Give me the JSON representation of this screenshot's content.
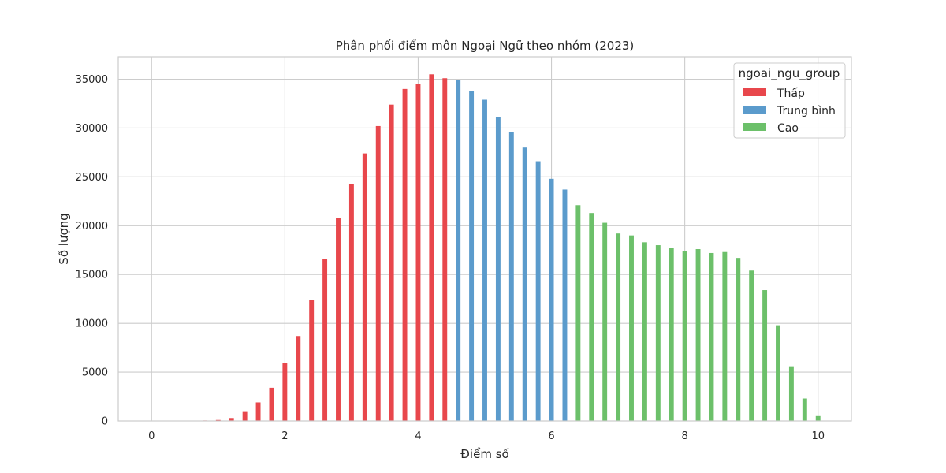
{
  "chart_data": {
    "type": "bar",
    "title": "Phân phối điểm môn Ngoại Ngữ theo nhóm (2023)",
    "xlabel": "Điểm số",
    "ylabel": "Số lượng",
    "xlim": [
      -0.5,
      10.5
    ],
    "ylim": [
      0,
      37300
    ],
    "xticks": [
      0,
      2,
      4,
      6,
      8,
      10
    ],
    "yticks": [
      0,
      5000,
      10000,
      15000,
      20000,
      25000,
      30000,
      35000
    ],
    "grid": true,
    "bar_width": 0.07,
    "legend": {
      "title": "ngoai_ngu_group",
      "placement": "top-right",
      "entries": [
        "Thấp",
        "Trung bình",
        "Cao"
      ]
    },
    "series": [
      {
        "name": "Thấp",
        "color": "#e8474c",
        "x": [
          0.0,
          0.2,
          0.4,
          0.6,
          0.8,
          1.0,
          1.2,
          1.4,
          1.6,
          1.8,
          2.0,
          2.2,
          2.4,
          2.6,
          2.8,
          3.0,
          3.2,
          3.4,
          3.6,
          3.8,
          4.0,
          4.2,
          4.4
        ],
        "values": [
          0,
          5,
          10,
          20,
          50,
          100,
          300,
          1000,
          1900,
          3400,
          5900,
          8700,
          12400,
          16600,
          20800,
          24300,
          27400,
          30200,
          32400,
          34000,
          34500,
          35500,
          35100
        ]
      },
      {
        "name": "Trung bình",
        "color": "#5b9bcc",
        "x": [
          4.6,
          4.8,
          5.0,
          5.2,
          5.4,
          5.6,
          5.8,
          6.0,
          6.2
        ],
        "values": [
          34900,
          33800,
          32900,
          31100,
          29600,
          28000,
          26600,
          24800,
          23700
        ]
      },
      {
        "name": "Cao",
        "color": "#6cc06a",
        "x": [
          6.4,
          6.6,
          6.8,
          7.0,
          7.2,
          7.4,
          7.6,
          7.8,
          8.0,
          8.2,
          8.4,
          8.6,
          8.8,
          9.0,
          9.2,
          9.4,
          9.6,
          9.8,
          10.0
        ],
        "values": [
          22100,
          21300,
          20300,
          19200,
          19000,
          18300,
          18000,
          17700,
          17400,
          17600,
          17200,
          17300,
          16700,
          15400,
          13400,
          9800,
          5600,
          2300,
          500
        ]
      }
    ]
  }
}
